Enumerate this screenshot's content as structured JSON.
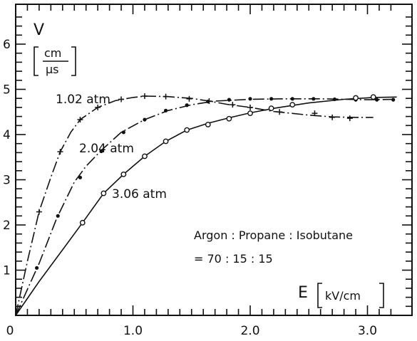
{
  "chart_data": {
    "type": "line",
    "title": "",
    "xlabel": "E",
    "xunit": "kV/cm",
    "ylabel": "V",
    "yunit_num": "cm",
    "yunit_den": "μs",
    "xlim": [
      0,
      3.25
    ],
    "ylim": [
      0,
      6.8
    ],
    "xticks": [
      {
        "value": 0,
        "label": "0"
      },
      {
        "value": 1.0,
        "label": "1.0"
      },
      {
        "value": 2.0,
        "label": "2.0"
      },
      {
        "value": 3.0,
        "label": "3.0"
      }
    ],
    "yticks": [
      {
        "value": 1,
        "label": "1"
      },
      {
        "value": 2,
        "label": "2"
      },
      {
        "value": 3,
        "label": "3"
      },
      {
        "value": 4,
        "label": "4"
      },
      {
        "value": 5,
        "label": "5"
      },
      {
        "value": 6,
        "label": "6"
      }
    ],
    "grid": false,
    "annotation_lines": [
      "Argon : Propane : Isobutane",
      "= 70 : 15 : 15"
    ],
    "series": [
      {
        "name": "1.02 atm",
        "marker": "plus",
        "line_style": "dash-dot",
        "curve": [
          [
            0,
            0
          ],
          [
            0.1,
            1.2
          ],
          [
            0.2,
            2.3
          ],
          [
            0.3,
            3.05
          ],
          [
            0.38,
            3.62
          ],
          [
            0.47,
            4.05
          ],
          [
            0.55,
            4.33
          ],
          [
            0.7,
            4.6
          ],
          [
            0.85,
            4.75
          ],
          [
            1.0,
            4.82
          ],
          [
            1.1,
            4.85
          ],
          [
            1.3,
            4.84
          ],
          [
            1.5,
            4.8
          ],
          [
            1.65,
            4.74
          ],
          [
            1.8,
            4.67
          ],
          [
            2.0,
            4.6
          ],
          [
            2.2,
            4.51
          ],
          [
            2.5,
            4.43
          ],
          [
            2.7,
            4.39
          ],
          [
            2.9,
            4.38
          ],
          [
            3.05,
            4.38
          ]
        ],
        "points": [
          [
            0.2,
            2.29
          ],
          [
            0.38,
            3.62
          ],
          [
            0.55,
            4.33
          ],
          [
            0.7,
            4.6
          ],
          [
            0.9,
            4.78
          ],
          [
            1.1,
            4.85
          ],
          [
            1.28,
            4.84
          ],
          [
            1.48,
            4.79
          ],
          [
            1.65,
            4.74
          ],
          [
            1.85,
            4.66
          ],
          [
            2.0,
            4.6
          ],
          [
            2.25,
            4.5
          ],
          [
            2.55,
            4.47
          ],
          [
            2.7,
            4.38
          ],
          [
            2.85,
            4.36
          ]
        ]
      },
      {
        "name": "2.04 atm",
        "marker": "dot",
        "line_style": "dash-dot",
        "curve": [
          [
            0,
            0
          ],
          [
            0.2,
            1.15
          ],
          [
            0.35,
            2.15
          ],
          [
            0.5,
            2.95
          ],
          [
            0.6,
            3.3
          ],
          [
            0.73,
            3.65
          ],
          [
            0.9,
            4.05
          ],
          [
            1.1,
            4.33
          ],
          [
            1.3,
            4.53
          ],
          [
            1.5,
            4.66
          ],
          [
            1.7,
            4.74
          ],
          [
            2.0,
            4.78
          ],
          [
            2.3,
            4.79
          ],
          [
            2.6,
            4.79
          ],
          [
            3.0,
            4.77
          ],
          [
            3.25,
            4.78
          ]
        ],
        "points": [
          [
            0.18,
            1.05
          ],
          [
            0.36,
            2.2
          ],
          [
            0.55,
            3.05
          ],
          [
            0.73,
            3.63
          ],
          [
            0.92,
            4.05
          ],
          [
            1.1,
            4.33
          ],
          [
            1.28,
            4.53
          ],
          [
            1.46,
            4.65
          ],
          [
            1.64,
            4.73
          ],
          [
            1.82,
            4.77
          ],
          [
            2.0,
            4.79
          ],
          [
            2.18,
            4.79
          ],
          [
            2.36,
            4.79
          ],
          [
            2.54,
            4.79
          ],
          [
            2.72,
            4.78
          ],
          [
            2.9,
            4.77
          ],
          [
            3.08,
            4.77
          ],
          [
            3.22,
            4.77
          ]
        ]
      },
      {
        "name": "3.06 atm",
        "marker": "circle",
        "line_style": "solid",
        "curve": [
          [
            0,
            0
          ],
          [
            0.2,
            0.75
          ],
          [
            0.4,
            1.45
          ],
          [
            0.57,
            2.05
          ],
          [
            0.75,
            2.7
          ],
          [
            0.92,
            3.12
          ],
          [
            1.1,
            3.52
          ],
          [
            1.28,
            3.85
          ],
          [
            1.46,
            4.1
          ],
          [
            1.64,
            4.25
          ],
          [
            1.82,
            4.37
          ],
          [
            2.0,
            4.48
          ],
          [
            2.2,
            4.58
          ],
          [
            2.5,
            4.7
          ],
          [
            2.8,
            4.78
          ],
          [
            3.05,
            4.82
          ],
          [
            3.25,
            4.83
          ]
        ],
        "points": [
          [
            0.57,
            2.05
          ],
          [
            0.75,
            2.7
          ],
          [
            0.92,
            3.12
          ],
          [
            1.1,
            3.52
          ],
          [
            1.28,
            3.85
          ],
          [
            1.46,
            4.1
          ],
          [
            1.64,
            4.22
          ],
          [
            1.82,
            4.35
          ],
          [
            2.0,
            4.47
          ],
          [
            2.18,
            4.58
          ],
          [
            2.36,
            4.66
          ],
          [
            2.9,
            4.81
          ],
          [
            3.05,
            4.83
          ]
        ]
      }
    ]
  }
}
